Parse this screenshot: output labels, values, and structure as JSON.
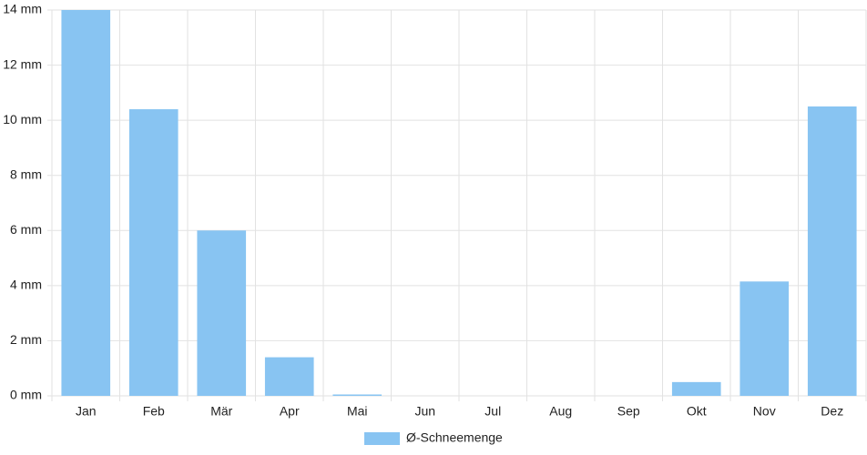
{
  "chart_data": {
    "type": "bar",
    "categories": [
      "Jan",
      "Feb",
      "Mär",
      "Apr",
      "Mai",
      "Jun",
      "Jul",
      "Aug",
      "Sep",
      "Okt",
      "Nov",
      "Dez"
    ],
    "series": [
      {
        "name": "Ø-Schneemenge",
        "color": "#88c4f2",
        "values": [
          14,
          10.4,
          6,
          1.4,
          0.05,
          0,
          0,
          0,
          0,
          0.5,
          4.15,
          10.5
        ]
      }
    ],
    "ylim": [
      0,
      14
    ],
    "yticks": [
      {
        "value": 0,
        "label": "0 mm"
      },
      {
        "value": 2,
        "label": "2 mm"
      },
      {
        "value": 4,
        "label": "4 mm"
      },
      {
        "value": 6,
        "label": "6 mm"
      },
      {
        "value": 8,
        "label": "8 mm"
      },
      {
        "value": 10,
        "label": "10 mm"
      },
      {
        "value": 12,
        "label": "12 mm"
      },
      {
        "value": 14,
        "label": "14 mm"
      }
    ],
    "grid": true,
    "legend": "bottom"
  }
}
